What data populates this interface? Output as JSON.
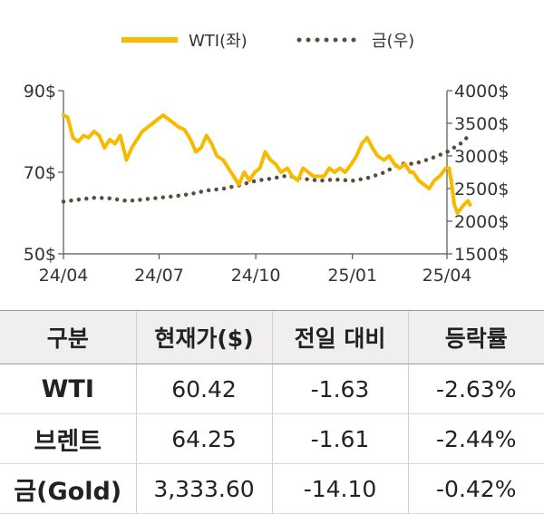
{
  "chart_data": {
    "type": "line",
    "x_ticks": [
      "24/04",
      "24/07",
      "24/10",
      "25/01",
      "25/04"
    ],
    "y_left": {
      "ticks": [
        "90$",
        "70$",
        "50$"
      ],
      "range": [
        50,
        90
      ]
    },
    "y_right": {
      "ticks": [
        "4000$",
        "3500$",
        "3000$",
        "2500$",
        "2000$",
        "1500$"
      ],
      "range": [
        1500,
        4000
      ]
    },
    "grid": false,
    "legend_position": "top-right",
    "series": [
      {
        "name": "WTI(좌)",
        "axis": "left",
        "style": "solid",
        "color": "#F6BB00",
        "x": [
          "2024-04-01",
          "2024-04-05",
          "2024-04-10",
          "2024-04-15",
          "2024-04-20",
          "2024-04-25",
          "2024-04-30",
          "2024-05-05",
          "2024-05-10",
          "2024-05-15",
          "2024-05-20",
          "2024-05-25",
          "2024-05-31",
          "2024-06-05",
          "2024-06-10",
          "2024-06-15",
          "2024-06-20",
          "2024-06-25",
          "2024-06-30",
          "2024-07-05",
          "2024-07-10",
          "2024-07-15",
          "2024-07-20",
          "2024-07-25",
          "2024-07-31",
          "2024-08-05",
          "2024-08-10",
          "2024-08-15",
          "2024-08-20",
          "2024-08-25",
          "2024-08-31",
          "2024-09-05",
          "2024-09-10",
          "2024-09-15",
          "2024-09-20",
          "2024-09-25",
          "2024-09-30",
          "2024-10-05",
          "2024-10-10",
          "2024-10-15",
          "2024-10-20",
          "2024-10-25",
          "2024-10-31",
          "2024-11-05",
          "2024-11-10",
          "2024-11-15",
          "2024-11-20",
          "2024-11-25",
          "2024-11-30",
          "2024-12-05",
          "2024-12-10",
          "2024-12-15",
          "2024-12-20",
          "2024-12-25",
          "2024-12-31",
          "2025-01-05",
          "2025-01-10",
          "2025-01-15",
          "2025-01-20",
          "2025-01-25",
          "2025-01-31",
          "2025-02-05",
          "2025-02-10",
          "2025-02-15",
          "2025-02-20",
          "2025-02-25",
          "2025-02-28",
          "2025-03-05",
          "2025-03-10",
          "2025-03-15",
          "2025-03-20",
          "2025-03-25",
          "2025-03-31",
          "2025-04-03",
          "2025-04-05",
          "2025-04-08",
          "2025-04-11",
          "2025-04-14",
          "2025-04-17",
          "2025-04-21",
          "2025-04-23"
        ],
        "values": [
          84,
          83.5,
          78.5,
          77.5,
          79,
          78.5,
          80,
          79,
          76,
          78,
          77,
          79,
          73,
          76,
          78,
          80,
          81,
          82,
          83,
          84,
          83,
          82,
          81,
          80.5,
          78,
          75,
          76,
          79,
          77,
          74,
          73,
          71,
          69,
          67,
          70,
          68,
          70,
          71,
          75,
          73,
          72,
          70,
          71,
          69,
          68,
          71,
          70,
          69,
          69,
          69,
          71,
          70,
          71,
          70,
          72,
          74,
          77,
          78.5,
          76,
          74,
          73,
          74,
          72,
          71,
          72,
          70,
          70,
          68,
          67,
          66,
          68,
          69,
          71,
          71,
          68,
          62,
          60,
          61,
          62,
          63,
          62
        ]
      },
      {
        "name": "금(우)",
        "axis": "right",
        "style": "dotted",
        "color": "#5B4C3D",
        "x": [
          "2024-04-01",
          "2024-04-15",
          "2024-05-01",
          "2024-05-15",
          "2024-06-01",
          "2024-06-15",
          "2024-07-01",
          "2024-07-15",
          "2024-08-01",
          "2024-08-15",
          "2024-09-01",
          "2024-09-15",
          "2024-10-01",
          "2024-10-15",
          "2024-11-01",
          "2024-11-15",
          "2024-12-01",
          "2024-12-15",
          "2025-01-01",
          "2025-01-15",
          "2025-02-01",
          "2025-02-15",
          "2025-03-01",
          "2025-03-15",
          "2025-04-01",
          "2025-04-15",
          "2025-04-23"
        ],
        "values": [
          2300,
          2330,
          2360,
          2350,
          2310,
          2330,
          2360,
          2380,
          2420,
          2470,
          2500,
          2550,
          2620,
          2650,
          2700,
          2650,
          2620,
          2640,
          2620,
          2660,
          2750,
          2880,
          2880,
          2950,
          3060,
          3200,
          3330
        ]
      }
    ]
  },
  "table": {
    "headers": [
      "구분",
      "현재가($)",
      "전일 대비",
      "등락률"
    ],
    "rows": [
      [
        "WTI",
        "60.42",
        "-1.63",
        "-2.63%"
      ],
      [
        "브렌트",
        "64.25",
        "-1.61",
        "-2.44%"
      ],
      [
        "금(Gold)",
        "3,333.60",
        "-14.10",
        "-0.42%"
      ]
    ]
  }
}
